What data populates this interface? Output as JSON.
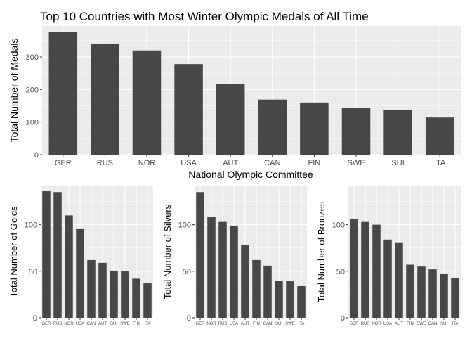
{
  "colors": {
    "panel_bg": "#ebebeb",
    "grid_major": "#ffffff",
    "bar_fill": "#474747",
    "tick_text": "#4d4d4d",
    "axis_title": "#000000"
  },
  "chart_data": [
    {
      "id": "total",
      "type": "bar",
      "title": "Top 10 Countries with Most Winter Olympic Medals of All Time",
      "xlabel": "National Olympic Committee",
      "ylabel": "Total Number of Medals",
      "categories": [
        "GER",
        "RUS",
        "NOR",
        "USA",
        "AUT",
        "CAN",
        "FIN",
        "SWE",
        "SUI",
        "ITA"
      ],
      "values": [
        377,
        340,
        320,
        278,
        217,
        169,
        160,
        144,
        137,
        114
      ],
      "ylim": [
        0,
        395
      ],
      "yticks": [
        0,
        100,
        200,
        300
      ],
      "grid": true
    },
    {
      "id": "golds",
      "type": "bar",
      "title": "",
      "xlabel": "",
      "ylabel": "Total Number of Golds",
      "categories": [
        "GER",
        "RUS",
        "NOR",
        "USA",
        "CAN",
        "AUT",
        "SUI",
        "SWE",
        "FIN",
        "ITA"
      ],
      "values": [
        136,
        135,
        110,
        96,
        62,
        59,
        50,
        50,
        42,
        37
      ],
      "ylim": [
        0,
        142
      ],
      "yticks": [
        0,
        50,
        100
      ],
      "grid": true
    },
    {
      "id": "silvers",
      "type": "bar",
      "title": "",
      "xlabel": "",
      "ylabel": "Total Number of Silvers",
      "categories": [
        "GER",
        "NOR",
        "RUS",
        "USA",
        "AUT",
        "FIN",
        "CAN",
        "SUI",
        "SWE",
        "ITA"
      ],
      "values": [
        135,
        108,
        103,
        99,
        78,
        62,
        56,
        40,
        40,
        34
      ],
      "ylim": [
        0,
        142
      ],
      "yticks": [
        0,
        50,
        100
      ],
      "grid": true
    },
    {
      "id": "bronzes",
      "type": "bar",
      "title": "",
      "xlabel": "",
      "ylabel": "Total Number of Bronzes",
      "categories": [
        "GER",
        "RUS",
        "NOR",
        "USA",
        "AUT",
        "FIN",
        "SWE",
        "CAN",
        "SUI",
        "ITA"
      ],
      "values": [
        106,
        103,
        100,
        84,
        81,
        57,
        55,
        52,
        47,
        43
      ],
      "ylim": [
        0,
        142
      ],
      "yticks": [
        0,
        50,
        100
      ],
      "grid": true
    }
  ]
}
